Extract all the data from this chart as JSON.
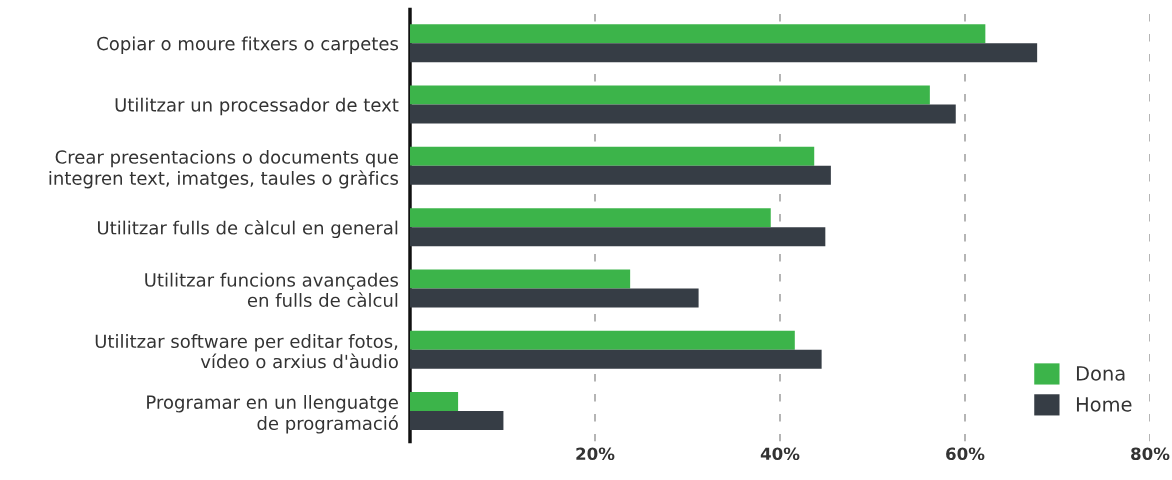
{
  "chart_data": {
    "type": "bar",
    "orientation": "horizontal",
    "categories": [
      "Copiar o moure fitxers o carpetes",
      "Utilitzar un processador de text",
      "Crear presentacions o documents que\nintegren text, imatges, taules o gràfics",
      "Utilitzar fulls de càlcul en general",
      "Utilitzar funcions avançades\nen fulls de càlcul",
      "Utilitzar software per editar fotos,\nvídeo o arxius d'àudio",
      "Programar en un llenguatge\nde programació"
    ],
    "series": [
      {
        "name": "Dona",
        "color": "#3cb44a",
        "values": [
          62.2,
          56.2,
          43.7,
          39.0,
          23.8,
          41.6,
          5.2
        ]
      },
      {
        "name": "Home",
        "color": "#363d45",
        "values": [
          67.8,
          59.0,
          45.5,
          44.9,
          31.2,
          44.5,
          10.1
        ]
      }
    ],
    "xlim": [
      0,
      80
    ],
    "xticks": [
      {
        "value": 20,
        "label": "20%"
      },
      {
        "value": 40,
        "label": "40%"
      },
      {
        "value": 60,
        "label": "60%"
      },
      {
        "value": 80,
        "label": "80%"
      }
    ],
    "grid": "x",
    "legend": "bottom right"
  }
}
